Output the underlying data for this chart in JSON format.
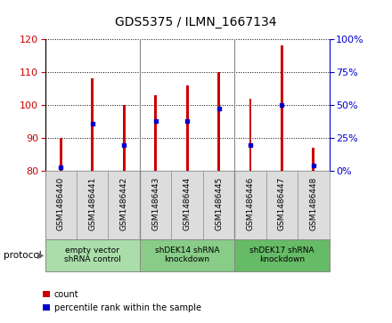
{
  "title": "GDS5375 / ILMN_1667134",
  "samples": [
    "GSM1486440",
    "GSM1486441",
    "GSM1486442",
    "GSM1486443",
    "GSM1486444",
    "GSM1486445",
    "GSM1486446",
    "GSM1486447",
    "GSM1486448"
  ],
  "counts": [
    90,
    108,
    100,
    103,
    106,
    110,
    102,
    118,
    87
  ],
  "percentile_ranks": [
    3,
    36,
    20,
    38,
    38,
    47,
    20,
    50,
    4
  ],
  "ylim_left": [
    80,
    120
  ],
  "ylim_right": [
    0,
    100
  ],
  "yticks_left": [
    80,
    90,
    100,
    110,
    120
  ],
  "yticks_right": [
    0,
    25,
    50,
    75,
    100
  ],
  "bar_color": "#cc0000",
  "blue_color": "#0000cc",
  "bar_bottom": 80,
  "groups": [
    {
      "label": "empty vector\nshRNA control",
      "start": 0,
      "end": 3,
      "color": "#aaddaa"
    },
    {
      "label": "shDEK14 shRNA\nknockdown",
      "start": 3,
      "end": 6,
      "color": "#88cc88"
    },
    {
      "label": "shDEK17 shRNA\nknockdown",
      "start": 6,
      "end": 9,
      "color": "#66bb66"
    }
  ],
  "legend_count_label": "count",
  "legend_percentile_label": "percentile rank within the sample",
  "protocol_label": "protocol",
  "bar_width": 0.08,
  "tick_area_color": "#dddddd",
  "plot_bg_color": "#ffffff",
  "spine_color": "#888888"
}
